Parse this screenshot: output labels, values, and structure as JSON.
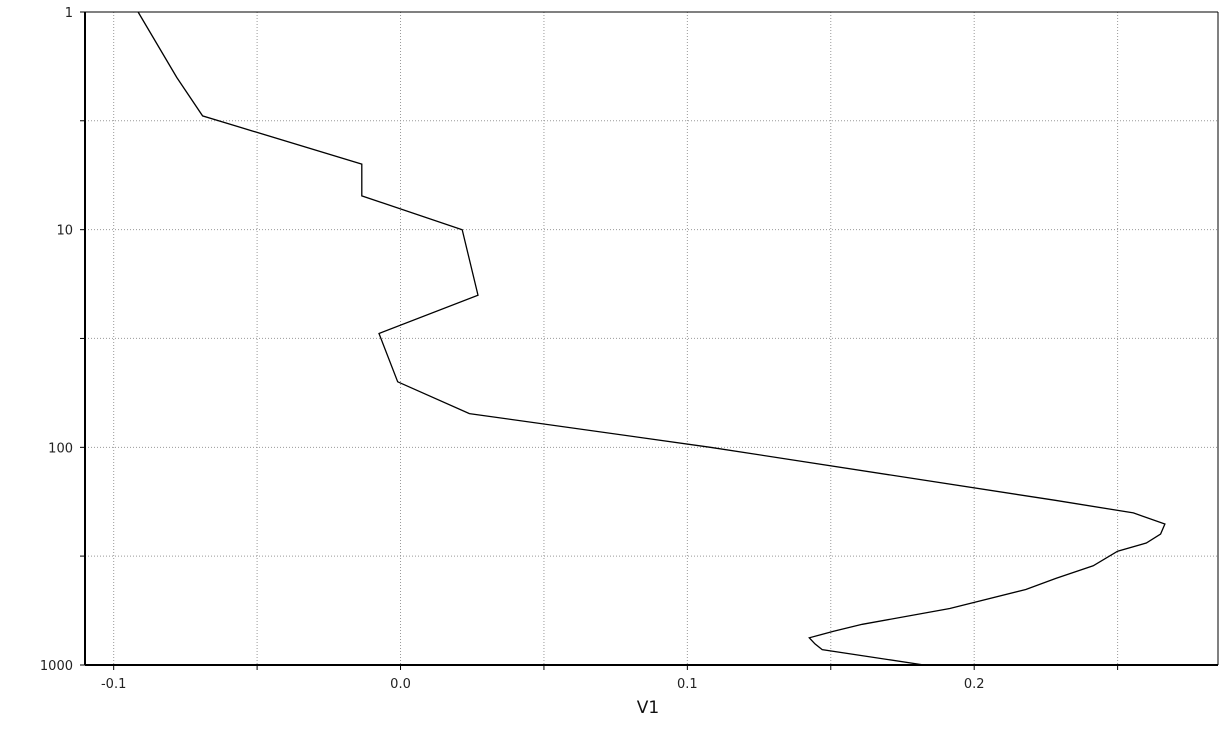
{
  "chart_data": {
    "type": "line",
    "title": "",
    "xlabel": "V1",
    "ylabel": "",
    "xlim": [
      -0.11,
      0.285
    ],
    "ylim": [
      1,
      1000
    ],
    "y_scale": "log",
    "y_inverted": true,
    "grid": true,
    "x_ticks": [
      -0.1,
      -0.05,
      0.0,
      0.05,
      0.1,
      0.15,
      0.2,
      0.25
    ],
    "x_tick_labels": [
      "-0.1",
      "",
      "0.0",
      "",
      "0.1",
      "",
      "0.2",
      ""
    ],
    "y_ticks": [
      1,
      3.16,
      10,
      31.6,
      100,
      316,
      1000
    ],
    "y_tick_labels": [
      "1",
      "",
      "10",
      "",
      "100",
      "",
      "1000"
    ],
    "series": [
      {
        "color": "#000000",
        "points": [
          [
            -0.0915,
            1
          ],
          [
            -0.078,
            2
          ],
          [
            -0.069,
            3
          ],
          [
            -0.0135,
            5
          ],
          [
            -0.0135,
            7
          ],
          [
            0.0215,
            10
          ],
          [
            0.027,
            20
          ],
          [
            -0.0075,
            30
          ],
          [
            -0.001,
            50
          ],
          [
            0.024,
            70
          ],
          [
            0.108,
            100
          ],
          [
            0.228,
            175
          ],
          [
            0.2555,
            200
          ],
          [
            0.2665,
            225
          ],
          [
            0.265,
            250
          ],
          [
            0.26,
            275
          ],
          [
            0.25,
            300
          ],
          [
            0.2415,
            350
          ],
          [
            0.2285,
            400
          ],
          [
            0.218,
            450
          ],
          [
            0.1915,
            550
          ],
          [
            0.161,
            650
          ],
          [
            0.151,
            700
          ],
          [
            0.1425,
            750
          ],
          [
            0.1445,
            800
          ],
          [
            0.147,
            850
          ],
          [
            0.1825,
            1000
          ]
        ]
      }
    ]
  }
}
